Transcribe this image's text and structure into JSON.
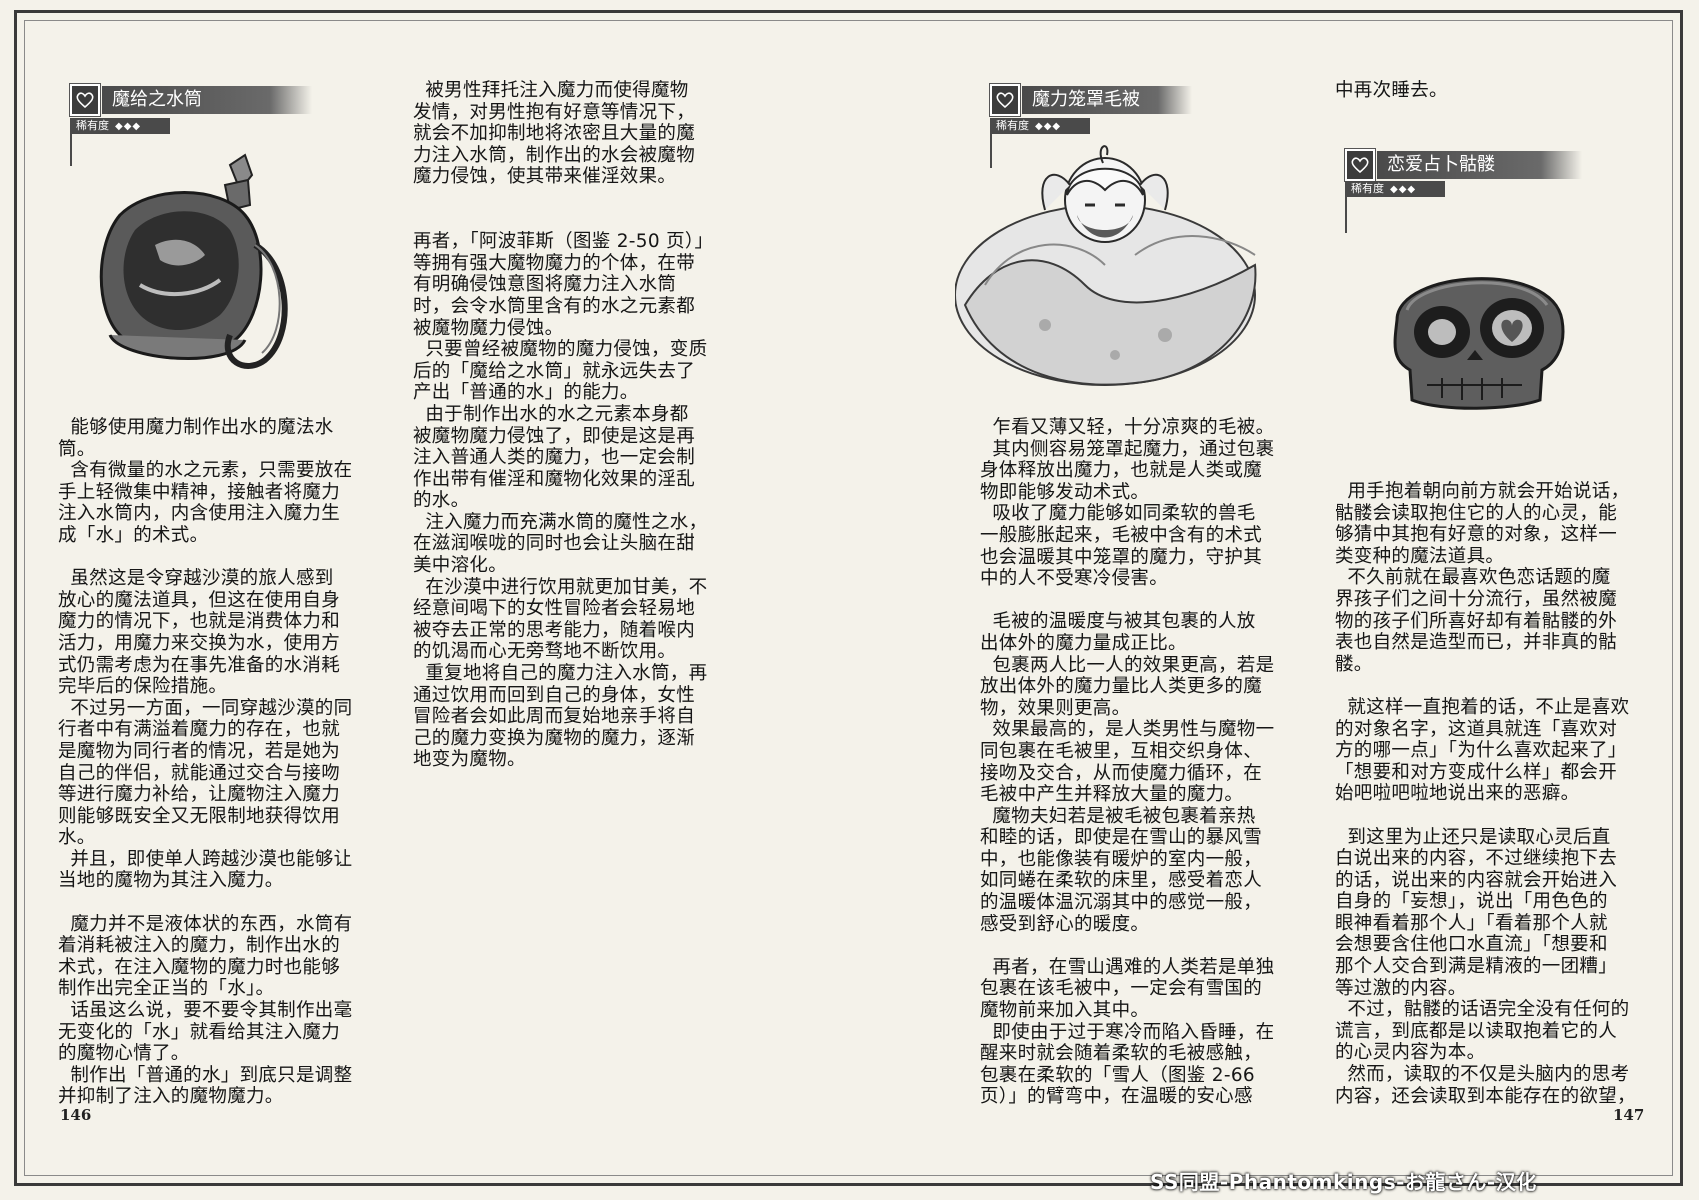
{
  "items": [
    {
      "name": "魔给之水筒",
      "rarity_label": "稀有度",
      "rarity": "◆◆◆"
    },
    {
      "name": "魔力笼罩毛被",
      "rarity_label": "稀有度",
      "rarity": "◆◆◆"
    },
    {
      "name": "恋爱占卜骷髅",
      "rarity_label": "稀有度",
      "rarity": "◆◆◆"
    }
  ],
  "columns": {
    "col1": [
      "  能够使用魔力制作出水的魔法水",
      "筒。",
      "  含有微量的水之元素，只需要放在",
      "手上轻微集中精神，接触者将魔力",
      "注入水筒内，内含使用注入魔力生",
      "成「水」的术式。",
      "",
      "  虽然这是令穿越沙漠的旅人感到",
      "放心的魔法道具，但这在使用自身",
      "魔力的情况下，也就是消费体力和",
      "活力，用魔力来交换为水，使用方",
      "式仍需考虑为在事先准备的水消耗",
      "完毕后的保险措施。",
      "  不过另一方面，一同穿越沙漠的同",
      "行者中有满溢着魔力的存在，也就",
      "是魔物为同行者的情况，若是她为",
      "自己的伴侣，就能通过交合与接吻",
      "等进行魔力补给，让魔物注入魔力",
      "则能够既安全又无限制地获得饮用",
      "水。",
      "  并且，即使单人跨越沙漠也能够让",
      "当地的魔物为其注入魔力。",
      "",
      "  魔力并不是液体状的东西，水筒有",
      "着消耗被注入的魔力，制作出水的",
      "术式，在注入魔物的魔力时也能够",
      "制作出完全正当的「水」。",
      "  话虽这么说，要不要令其制作出毫",
      "无变化的「水」就看给其注入魔力",
      "的魔物心情了。",
      "  制作出「普通的水」到底只是调整",
      "并抑制了注入的魔物魔力。"
    ],
    "col2": [
      "  被男性拜托注入魔力而使得魔物",
      "发情，对男性抱有好意等情况下，",
      "就会不加抑制地将浓密且大量的魔",
      "力注入水筒，制作出的水会被魔物",
      "魔力侵蚀，使其带来催淫效果。",
      "",
      "  再者，「阿波菲斯（图鉴 2-50 页）」",
      "等拥有强大魔物魔力的个体，在带",
      "有明确侵蚀意图将魔力注入水筒",
      "时，会令水筒里含有的水之元素都",
      "被魔物魔力侵蚀。",
      "  只要曾经被魔物的魔力侵蚀，变质",
      "后的「魔给之水筒」就永远失去了",
      "产出「普通的水」的能力。",
      "  由于制作出水的水之元素本身都",
      "被魔物魔力侵蚀了，即使是这是再",
      "注入普通人类的魔力，也一定会制",
      "作出带有催淫和魔物化效果的淫乱",
      "的水。",
      "  注入魔力而充满水筒的魔性之水，",
      "在滋润喉咙的同时也会让头脑在甜",
      "美中溶化。",
      "  在沙漠中进行饮用就更加甘美，不",
      "经意间喝下的女性冒险者会轻易地",
      "被夺去正常的思考能力，随着喉内",
      "的饥渴而心无旁骛地不断饮用。",
      "  重复地将自己的魔力注入水筒，再",
      "通过饮用而回到自己的身体，女性",
      "冒险者会如此周而复始地亲手将自",
      "己的魔力变换为魔物的魔力，逐渐",
      "地变为魔物。"
    ],
    "col3": [
      "  乍看又薄又轻，十分凉爽的毛被。",
      "  其内侧容易笼罩起魔力，通过包裹",
      "身体释放出魔力，也就是人类或魔",
      "物即能够发动术式。",
      "  吸收了魔力能够如同柔软的兽毛",
      "一般膨胀起来，毛被中含有的术式",
      "也会温暖其中笼罩的魔力，守护其",
      "中的人不受寒冷侵害。",
      "",
      "  毛被的温暖度与被其包裹的人放",
      "出体外的魔力量成正比。",
      "  包裹两人比一人的效果更高，若是",
      "放出体外的魔力量比人类更多的魔",
      "物，效果则更高。",
      "  效果最高的，是人类男性与魔物一",
      "同包裹在毛被里，互相交织身体、",
      "接吻及交合，从而使魔力循环，在",
      "毛被中产生并释放大量的魔力。",
      "  魔物夫妇若是被毛被包裹着亲热",
      "和睦的话，即使是在雪山的暴风雪",
      "中，也能像装有暖炉的室内一般，",
      "如同蜷在柔软的床里，感受着恋人",
      "的温暖体温沉溺其中的感觉一般，",
      "感受到舒心的暖度。",
      "",
      "  再者，在雪山遇难的人类若是单独",
      "包裹在该毛被中，一定会有雪国的",
      "魔物前来加入其中。",
      "  即使由于过于寒冷而陷入昏睡，在",
      "醒来时就会随着柔软的毛被感触，",
      "包裹在柔软的「雪人（图鉴 2-66",
      "页）」的臂弯中，在温暖的安心感"
    ],
    "col4_top": [
      "中再次睡去。"
    ],
    "col4": [
      "  用手抱着朝向前方就会开始说话，",
      "骷髅会读取抱住它的人的心灵，能",
      "够猜中其抱有好意的对象，这样一",
      "类变种的魔法道具。",
      "  不久前就在最喜欢色恋话题的魔",
      "界孩子们之间十分流行，虽然被魔",
      "物的孩子们所喜好却有着骷髅的外",
      "表也自然是造型而已，并非真的骷",
      "髅。",
      "",
      "  就这样一直抱着的话，不止是喜欢",
      "的对象名字，这道具就连「喜欢对",
      "方的哪一点」「为什么喜欢起来了」",
      "「想要和对方变成什么样」都会开",
      "始吧啦吧啦地说出来的恶癖。",
      "",
      "  到这里为止还只是读取心灵后直",
      "白说出来的内容，不过继续抱下去",
      "的话，说出来的内容就会开始进入",
      "自身的「妄想」，说出「用色色的",
      "眼神看着那个人」「看着那个人就",
      "会想要含住他口水直流」「想要和",
      "那个人交合到满是精液的一团糟」",
      "等过激的内容。",
      "  不过，骷髅的话语完全没有任何的",
      "谎言，到底都是以读取抱着它的人",
      "的心灵内容为本。",
      "  然而，读取的不仅是头脑内的思考",
      "内容，还会读取到本能存在的欲望，"
    ]
  },
  "page_numbers": {
    "left": "146",
    "right": "147"
  },
  "watermark": "SS同盟-Phantomkings-お龍さん-汉化",
  "colors": {
    "paper": "#f4f2ea",
    "ink": "#161616",
    "header_bar": "#4a4a4a"
  }
}
